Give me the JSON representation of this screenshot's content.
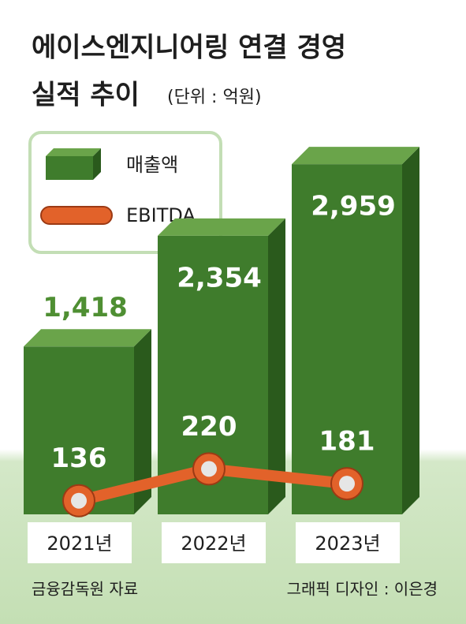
{
  "chart_data": {
    "type": "bar-line",
    "title": "에이스엔지니어링 연결 경영",
    "title_line2": "실적 추이",
    "unit": "(단위 : 억원)",
    "categories": [
      "2021년",
      "2022년",
      "2023년"
    ],
    "series": [
      {
        "name": "매출액",
        "type": "bar",
        "color": "#3f7c2c",
        "values": [
          1418,
          2354,
          2959
        ],
        "value_labels": [
          "1,418",
          "2,354",
          "2,959"
        ]
      },
      {
        "name": "EBITDA",
        "type": "line",
        "color": "#e2622a",
        "values": [
          136,
          220,
          181
        ]
      }
    ],
    "source": "금융감독원 자료",
    "credit": "그래픽 디자인 : 이은경"
  }
}
